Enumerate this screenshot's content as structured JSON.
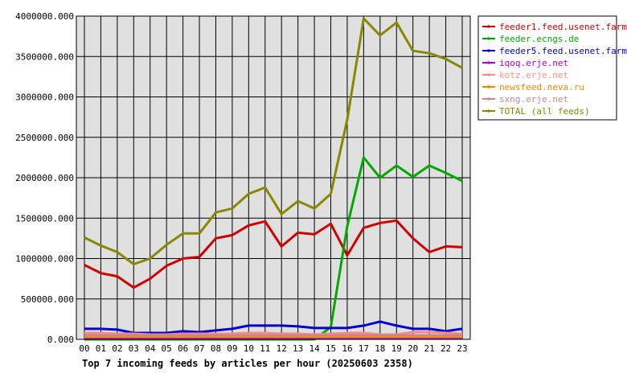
{
  "chart_data": {
    "type": "line",
    "title": "Top 7 incoming feeds by articles per hour (20250603 2358)",
    "xlabel": "",
    "ylabel": "",
    "categories": [
      "00",
      "01",
      "02",
      "03",
      "04",
      "05",
      "06",
      "07",
      "08",
      "09",
      "10",
      "11",
      "12",
      "13",
      "14",
      "15",
      "16",
      "17",
      "18",
      "19",
      "20",
      "21",
      "22",
      "23"
    ],
    "ylim": [
      0,
      4000000
    ],
    "yticks": [
      "0.000",
      "500000.000",
      "1000000.000",
      "1500000.000",
      "2000000.000",
      "2500000.000",
      "3000000.000",
      "3500000.000",
      "4000000.000"
    ],
    "grid": true,
    "legend_position": "top-right",
    "plot_background": "#e0e0e0",
    "series": [
      {
        "name": "feeder1.feed.usenet.farm",
        "color": "#cc0000",
        "values": [
          920000,
          820000,
          780000,
          640000,
          750000,
          910000,
          1000000,
          1020000,
          1250000,
          1290000,
          1410000,
          1460000,
          1150000,
          1320000,
          1300000,
          1430000,
          1040000,
          1380000,
          1440000,
          1470000,
          1250000,
          1080000,
          1150000,
          1140000
        ]
      },
      {
        "name": "feeder.ecngs.de",
        "color": "#00aa00",
        "values": [
          0,
          0,
          0,
          0,
          0,
          0,
          0,
          0,
          0,
          0,
          0,
          0,
          0,
          0,
          0,
          150000,
          1400000,
          2250000,
          2000000,
          2150000,
          2010000,
          2150000,
          2060000,
          1960000
        ]
      },
      {
        "name": "feeder5.feed.usenet.farm",
        "color": "#0000cc",
        "values": [
          130000,
          130000,
          120000,
          80000,
          80000,
          80000,
          100000,
          90000,
          110000,
          130000,
          170000,
          170000,
          170000,
          160000,
          140000,
          140000,
          140000,
          170000,
          220000,
          170000,
          130000,
          130000,
          100000,
          130000
        ]
      },
      {
        "name": "iqoq.erje.net",
        "color": "#aa00cc",
        "values": [
          15000,
          15000,
          15000,
          15000,
          15000,
          15000,
          15000,
          15000,
          15000,
          15000,
          15000,
          15000,
          15000,
          15000,
          15000,
          15000,
          15000,
          15000,
          15000,
          15000,
          15000,
          15000,
          15000,
          15000
        ]
      },
      {
        "name": "kotz.erje.net",
        "color": "#ff8888",
        "values": [
          80000,
          80000,
          70000,
          70000,
          60000,
          60000,
          70000,
          70000,
          70000,
          70000,
          80000,
          80000,
          70000,
          70000,
          60000,
          70000,
          80000,
          80000,
          60000,
          60000,
          90000,
          90000,
          80000,
          70000
        ]
      },
      {
        "name": "newsfeed.neva.ru",
        "color": "#ee8800",
        "values": [
          30000,
          30000,
          30000,
          30000,
          30000,
          30000,
          30000,
          30000,
          30000,
          30000,
          30000,
          30000,
          30000,
          30000,
          30000,
          30000,
          30000,
          30000,
          30000,
          30000,
          30000,
          30000,
          30000,
          30000
        ]
      },
      {
        "name": "sxng.erje.net",
        "color": "#cc8888",
        "values": [
          50000,
          50000,
          50000,
          50000,
          50000,
          50000,
          50000,
          50000,
          50000,
          50000,
          50000,
          50000,
          50000,
          50000,
          50000,
          50000,
          50000,
          50000,
          50000,
          50000,
          50000,
          50000,
          50000,
          50000
        ]
      },
      {
        "name": "TOTAL (all feeds)",
        "color": "#888800",
        "values": [
          1260000,
          1160000,
          1080000,
          930000,
          1000000,
          1170000,
          1310000,
          1310000,
          1570000,
          1620000,
          1800000,
          1880000,
          1550000,
          1710000,
          1620000,
          1800000,
          2720000,
          3970000,
          3760000,
          3920000,
          3570000,
          3540000,
          3470000,
          3360000
        ]
      }
    ]
  }
}
